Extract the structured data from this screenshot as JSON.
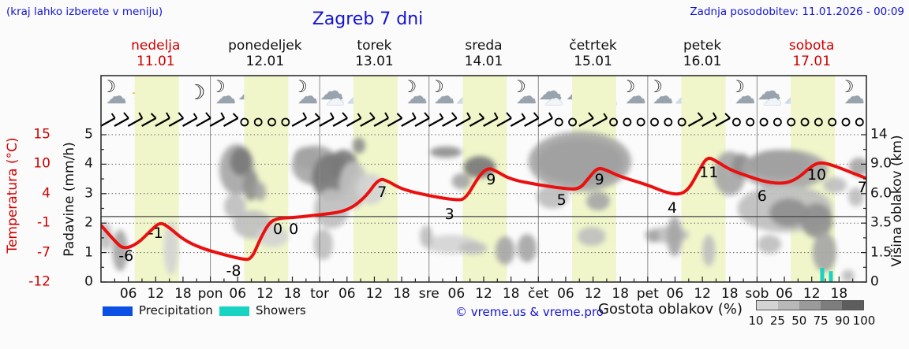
{
  "header": {
    "hint": "(kraj lahko izberete v meniju)",
    "title": "Zagreb 7 dni",
    "updated": "Zadnja posodobitev: 11.01.2026 - 00:09"
  },
  "days": [
    {
      "name": "nedelja",
      "date": "11.01",
      "weekend": true
    },
    {
      "name": "ponedeljek",
      "date": "12.01",
      "weekend": false
    },
    {
      "name": "torek",
      "date": "13.01",
      "weekend": false
    },
    {
      "name": "sreda",
      "date": "14.01",
      "weekend": false
    },
    {
      "name": "četrtek",
      "date": "15.01",
      "weekend": false
    },
    {
      "name": "petek",
      "date": "16.01",
      "weekend": false
    },
    {
      "name": "sobota",
      "date": "17.01",
      "weekend": true
    }
  ],
  "axes": {
    "temp_label": "Temperatura (°C)",
    "temp_ticks": [
      "15",
      "10",
      "4",
      "-1",
      "-7",
      "-12"
    ],
    "precip_label": "Padavine (mm/h)",
    "precip_ticks": [
      "5",
      "4",
      "3",
      "2",
      "1",
      "0"
    ],
    "cloud_label": "Višina oblakov (km)",
    "cloud_ticks": [
      "14",
      "9.0",
      "6.0",
      "3.5",
      "1.5",
      "0"
    ],
    "x_labels": [
      "06",
      "12",
      "18",
      "pon",
      "06",
      "12",
      "18",
      "tor",
      "06",
      "12",
      "18",
      "sre",
      "06",
      "12",
      "18",
      "čet",
      "06",
      "12",
      "18",
      "pet",
      "06",
      "12",
      "18",
      "sob",
      "06",
      "12",
      "18"
    ]
  },
  "legend": {
    "precipitation": "Precipitation",
    "showers": "Showers",
    "credit": "© vreme.us & vreme.pro",
    "cloud_density": "Gostota oblakov (%)",
    "density_ticks": [
      "10",
      "25",
      "50",
      "75",
      "90",
      "100"
    ],
    "precip_color": "#0b4fe4",
    "showers_color": "#18d3c2",
    "density_colors": [
      "#d4d4d4",
      "#b8b8b8",
      "#9a9a9a",
      "#7d7d7d",
      "#5d5d5d"
    ]
  },
  "colors": {
    "daylight_band": "#f0f6ca",
    "temp_curve": "#ea1010",
    "grid": "#666666",
    "day_line": "#8a8a8a"
  },
  "icons": [
    [
      "moon-cloud",
      "sun",
      "sun",
      "moon"
    ],
    [
      "moon-cloud",
      "cloud",
      "sun-cloud",
      "moon-cloud"
    ],
    [
      "cloud",
      "sun-cloud",
      "sun-cloud",
      "moon-cloud"
    ],
    [
      "moon-cloud",
      "sun-cloud",
      "sun-cloud",
      "moon-cloud"
    ],
    [
      "cloud",
      "cloud",
      "cloud",
      "moon-cloud"
    ],
    [
      "moon-cloud",
      "sun-cloud",
      "sun-cloud",
      "moon-cloud"
    ],
    [
      "cloud",
      "sun-cloud",
      "sun-cloud-rain",
      "moon-cloud"
    ]
  ],
  "wind_barbs": [
    "bbbbbbbb",
    "bboooobb",
    "bbbbbbbb",
    "bbbbbbbb",
    "boobbooo",
    "ooobbboo",
    "oooooooo"
  ],
  "chart_data": {
    "type": "line",
    "title": "Zagreb 7 dni",
    "x_axis": "time, 7 days at 3h steps (00h Sun - 24h Sat)",
    "temp_axis_range": [
      -12,
      15
    ],
    "precip_axis_range": [
      0,
      5
    ],
    "cloud_height_axis_km": [
      0,
      1.5,
      3.5,
      6.0,
      9.0,
      14
    ],
    "daylight_hours": [
      7.4,
      17.1
    ],
    "temperature_curve": [
      [
        0,
        -1.6
      ],
      [
        3,
        -4.5
      ],
      [
        5,
        -6
      ],
      [
        8,
        -5
      ],
      [
        11,
        -2.5
      ],
      [
        13,
        -1
      ],
      [
        15,
        -2
      ],
      [
        18,
        -4.2
      ],
      [
        22,
        -5.8
      ],
      [
        27,
        -7
      ],
      [
        31,
        -7.8
      ],
      [
        33,
        -7.9
      ],
      [
        35,
        -4
      ],
      [
        37,
        -1
      ],
      [
        39,
        -0.3
      ],
      [
        42,
        -0.2
      ],
      [
        48,
        0.3
      ],
      [
        54,
        1
      ],
      [
        58,
        3.5
      ],
      [
        61,
        7
      ],
      [
        63,
        6.5
      ],
      [
        66,
        5
      ],
      [
        72,
        3.8
      ],
      [
        78,
        3
      ],
      [
        80,
        3.2
      ],
      [
        83,
        7.5
      ],
      [
        85,
        9
      ],
      [
        87,
        8.2
      ],
      [
        90,
        6.8
      ],
      [
        96,
        5.8
      ],
      [
        102,
        5.1
      ],
      [
        105,
        5
      ],
      [
        107,
        7
      ],
      [
        109,
        9
      ],
      [
        111,
        8.5
      ],
      [
        114,
        7.3
      ],
      [
        120,
        5.8
      ],
      [
        124,
        4.4
      ],
      [
        127,
        4
      ],
      [
        129,
        5
      ],
      [
        131,
        8
      ],
      [
        133,
        11
      ],
      [
        135,
        10.2
      ],
      [
        138,
        8.6
      ],
      [
        142,
        7.4
      ],
      [
        146,
        6.3
      ],
      [
        150,
        6
      ],
      [
        153,
        7
      ],
      [
        156,
        9.3
      ],
      [
        158,
        10
      ],
      [
        161,
        9.3
      ],
      [
        164,
        8.3
      ],
      [
        168,
        7
      ]
    ],
    "point_labels": [
      {
        "t": "-6",
        "h": 5.5,
        "u": 0.88
      },
      {
        "t": "-1",
        "h": 12.0,
        "u": 1.66
      },
      {
        "t": "-8",
        "h": 29.1,
        "u": 0.37
      },
      {
        "t": "0",
        "h": 38.8,
        "u": 1.79
      },
      {
        "t": "0",
        "h": 42.3,
        "u": 1.79
      },
      {
        "t": "7",
        "h": 61.7,
        "u": 3.05
      },
      {
        "t": "3",
        "h": 76.5,
        "u": 2.3
      },
      {
        "t": "9",
        "h": 85.6,
        "u": 3.48
      },
      {
        "t": "5",
        "h": 101.1,
        "u": 2.78
      },
      {
        "t": "9",
        "h": 109.4,
        "u": 3.48
      },
      {
        "t": "4",
        "h": 125.4,
        "u": 2.51
      },
      {
        "t": "11",
        "h": 133.4,
        "u": 3.72
      },
      {
        "t": "6",
        "h": 145.1,
        "u": 2.91
      },
      {
        "t": "10",
        "h": 157.1,
        "u": 3.64
      },
      {
        "t": "7",
        "h": 167.1,
        "u": 3.21
      }
    ],
    "showers_bars_mm": [
      {
        "h": 158.3,
        "mm": 0.48
      },
      {
        "h": 160.2,
        "mm": 0.37
      }
    ],
    "cloud_cover_blobs": [
      [
        4.2,
        1.07,
        1.7,
        0.7,
        50
      ],
      [
        1.0,
        1.55,
        1.4,
        0.48,
        35
      ],
      [
        15.4,
        1.15,
        1.6,
        0.91,
        28
      ],
      [
        29.8,
        3.82,
        3.8,
        0.86,
        45
      ],
      [
        30.7,
        4.09,
        2.4,
        0.48,
        75
      ],
      [
        32.9,
        3.29,
        1.7,
        0.53,
        65
      ],
      [
        29.4,
        2.57,
        2.4,
        0.43,
        40
      ],
      [
        35.0,
        3.07,
        1.2,
        0.32,
        45
      ],
      [
        33.3,
        1.95,
        4.3,
        0.48,
        35
      ],
      [
        37.6,
        1.55,
        3.5,
        0.37,
        30
      ],
      [
        45.4,
        4.22,
        3.1,
        0.37,
        55
      ],
      [
        47.1,
        3.96,
        5.2,
        0.67,
        45
      ],
      [
        50.6,
        3.56,
        4.3,
        0.8,
        70
      ],
      [
        53.2,
        3.96,
        3.1,
        0.53,
        80
      ],
      [
        50.6,
        2.49,
        3.8,
        0.67,
        40
      ],
      [
        56.6,
        4.63,
        1.4,
        0.27,
        55
      ],
      [
        55.4,
        3.29,
        3.1,
        0.8,
        35
      ],
      [
        59.2,
        3.16,
        3.1,
        0.53,
        30
      ],
      [
        48.8,
        1.28,
        2.1,
        0.53,
        40
      ],
      [
        75.7,
        4.41,
        3.5,
        0.19,
        60
      ],
      [
        83.1,
        3.9,
        3.5,
        0.37,
        70
      ],
      [
        79.1,
        3.42,
        2.1,
        0.27,
        45
      ],
      [
        76.9,
        1.28,
        6.1,
        0.32,
        30
      ],
      [
        81.7,
        1.15,
        3.1,
        0.21,
        40
      ],
      [
        88.7,
        1.07,
        2.1,
        0.48,
        45
      ],
      [
        71.4,
        1.55,
        1.4,
        0.37,
        35
      ],
      [
        105.1,
        4.09,
        9.5,
        0.75,
        88
      ],
      [
        105.1,
        4.09,
        11.3,
        1.02,
        50
      ],
      [
        99.1,
        2.89,
        3.5,
        0.4,
        40
      ],
      [
        93.5,
        1.15,
        2.1,
        0.48,
        45
      ],
      [
        107.7,
        1.55,
        3.1,
        0.32,
        35
      ],
      [
        109.1,
        2.75,
        2.6,
        0.32,
        50
      ],
      [
        124.2,
        1.6,
        4.9,
        0.27,
        35
      ],
      [
        125.9,
        1.55,
        1.7,
        0.67,
        50
      ],
      [
        133.4,
        1.07,
        1.4,
        0.53,
        40
      ],
      [
        121.2,
        1.55,
        1.4,
        0.21,
        45
      ],
      [
        138.0,
        3.69,
        3.5,
        0.75,
        50
      ],
      [
        140.6,
        3.96,
        2.1,
        0.4,
        60
      ],
      [
        148.9,
        4.01,
        6.9,
        0.48,
        85
      ],
      [
        150.1,
        3.82,
        9.5,
        0.67,
        50
      ],
      [
        150.1,
        2.49,
        10.4,
        0.8,
        38
      ],
      [
        151.0,
        2.35,
        4.3,
        0.48,
        55
      ],
      [
        157.1,
        2.09,
        3.5,
        0.59,
        60
      ],
      [
        158.8,
        1.02,
        2.6,
        0.67,
        45
      ],
      [
        146.7,
        1.28,
        2.6,
        0.32,
        40
      ],
      [
        166.3,
        3.9,
        2.1,
        0.32,
        50
      ],
      [
        165.7,
        2.89,
        1.7,
        0.32,
        40
      ],
      [
        164.0,
        0.21,
        1.4,
        0.21,
        40
      ],
      [
        161.1,
        3.29,
        2.6,
        0.27,
        35
      ]
    ]
  }
}
